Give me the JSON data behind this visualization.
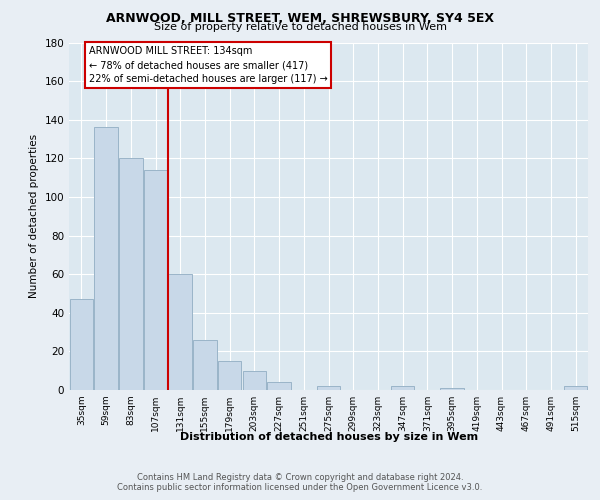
{
  "title1": "ARNWOOD, MILL STREET, WEM, SHREWSBURY, SY4 5EX",
  "title2": "Size of property relative to detached houses in Wem",
  "xlabel": "Distribution of detached houses by size in Wem",
  "ylabel": "Number of detached properties",
  "bar_labels": [
    "35sqm",
    "59sqm",
    "83sqm",
    "107sqm",
    "131sqm",
    "155sqm",
    "179sqm",
    "203sqm",
    "227sqm",
    "251sqm",
    "275sqm",
    "299sqm",
    "323sqm",
    "347sqm",
    "371sqm",
    "395sqm",
    "419sqm",
    "443sqm",
    "467sqm",
    "491sqm",
    "515sqm"
  ],
  "bar_values": [
    47,
    136,
    120,
    114,
    60,
    26,
    15,
    10,
    4,
    0,
    2,
    0,
    0,
    2,
    0,
    1,
    0,
    0,
    0,
    0,
    2
  ],
  "bar_color": "#c8d8e8",
  "bar_edge_color": "#9ab4c8",
  "vline_index": 4,
  "vline_color": "#cc0000",
  "annotation_title": "ARNWOOD MILL STREET: 134sqm",
  "annotation_line1": "← 78% of detached houses are smaller (417)",
  "annotation_line2": "22% of semi-detached houses are larger (117) →",
  "annotation_box_color": "#ffffff",
  "annotation_box_edge": "#cc0000",
  "ylim": [
    0,
    180
  ],
  "yticks": [
    0,
    20,
    40,
    60,
    80,
    100,
    120,
    140,
    160,
    180
  ],
  "background_color": "#e8eef4",
  "plot_background": "#dce8f0",
  "grid_color": "#ffffff",
  "footer1": "Contains HM Land Registry data © Crown copyright and database right 2024.",
  "footer2": "Contains public sector information licensed under the Open Government Licence v3.0."
}
